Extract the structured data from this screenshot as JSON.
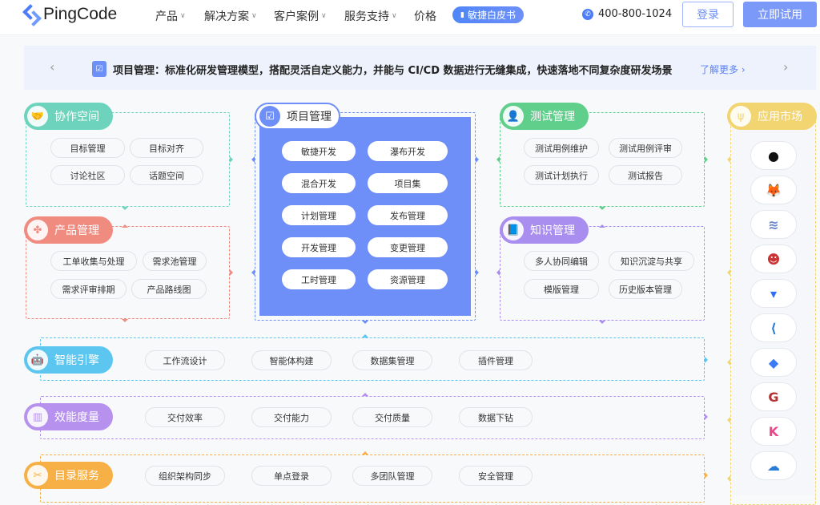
{
  "header": {
    "logo": "PingCode",
    "nav": [
      {
        "label": "产品",
        "dropdown": true
      },
      {
        "label": "解决方案",
        "dropdown": true
      },
      {
        "label": "客户案例",
        "dropdown": true
      },
      {
        "label": "服务支持",
        "dropdown": true
      },
      {
        "label": "价格",
        "dropdown": false
      }
    ],
    "whitepaper": "敏捷白皮书",
    "phone": "400-800-1024",
    "login": "登录",
    "trial": "立即试用"
  },
  "banner": {
    "text": "项目管理：标准化研发管理模型，搭配灵活自定义能力，并能与 CI/CD 数据进行无缝集成，快速落地不同复杂度研发场景",
    "more": "了解更多 ›",
    "prev": "‹",
    "next": "›"
  },
  "sections": {
    "collab": {
      "title": "协作空间",
      "color": "#6dd3bd",
      "icon": "handshake",
      "items": [
        "目标管理",
        "目标对齐",
        "讨论社区",
        "话题空间"
      ]
    },
    "product": {
      "title": "产品管理",
      "color": "#f08b80",
      "icon": "clover",
      "items": [
        "工单收集与处理",
        "需求池管理",
        "需求评审排期",
        "产品路线图"
      ]
    },
    "project": {
      "title": "项目管理",
      "color": "#6f8ff8",
      "icon": "checklist",
      "items": [
        "敏捷开发",
        "瀑布开发",
        "混合开发",
        "项目集",
        "计划管理",
        "发布管理",
        "开发管理",
        "变更管理",
        "工时管理",
        "资源管理"
      ]
    },
    "test": {
      "title": "测试管理",
      "color": "#5fcf8b",
      "icon": "person",
      "items": [
        "测试用例维护",
        "测试用例评审",
        "测试计划执行",
        "测试报告"
      ]
    },
    "knowledge": {
      "title": "知识管理",
      "color": "#a98ef0",
      "icon": "book",
      "items": [
        "多人协同编辑",
        "知识沉淀与共享",
        "模版管理",
        "历史版本管理"
      ]
    },
    "engine": {
      "title": "智能引擎",
      "color": "#5cc6f0",
      "icon": "robot",
      "items": [
        "工作流设计",
        "智能体构建",
        "数据集管理",
        "插件管理"
      ]
    },
    "metrics": {
      "title": "效能度量",
      "color": "#b692ee",
      "icon": "chart",
      "items": [
        "交付效率",
        "交付能力",
        "交付质量",
        "数据下钻"
      ]
    },
    "directory": {
      "title": "目录服务",
      "color": "#f6b045",
      "icon": "tools",
      "items": [
        "组织架构同步",
        "单点登录",
        "多团队管理",
        "安全管理"
      ]
    },
    "market": {
      "title": "应用市场",
      "color": "#f2d470",
      "icon": "plug",
      "apps": [
        "github",
        "gitlab",
        "zentao",
        "jenkins",
        "bitbucket",
        "vscode",
        "jira",
        "gitee",
        "kibana",
        "cloud"
      ]
    }
  }
}
